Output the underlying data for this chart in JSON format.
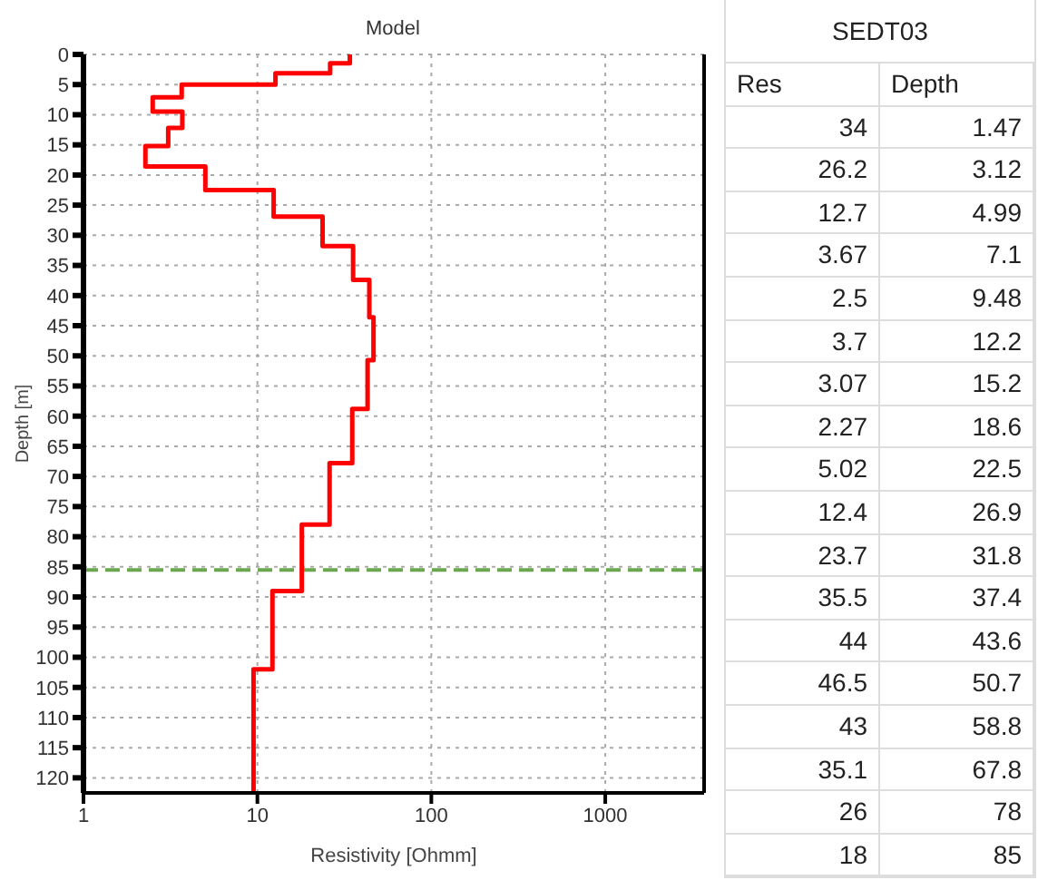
{
  "chart_data": [
    {
      "type": "line",
      "title": "Model",
      "xlabel": "Resistivity [Ohmm]",
      "ylabel": "Depth [m]",
      "log": "x",
      "xlim": [
        1,
        3700
      ],
      "xticks": [
        1,
        10,
        100,
        1000
      ],
      "ylim": [
        122.5,
        0
      ],
      "yticks": [
        0,
        5,
        10,
        15,
        20,
        25,
        30,
        35,
        40,
        45,
        50,
        55,
        60,
        65,
        70,
        75,
        80,
        85,
        90,
        95,
        100,
        105,
        110,
        115,
        120
      ],
      "grid": true,
      "marker": "none",
      "line_style": "solid",
      "series": [
        {
          "color": "#ff0000",
          "x": [
            34,
            34,
            26.2,
            26.2,
            12.7,
            12.7,
            3.67,
            3.67,
            2.5,
            2.5,
            3.7,
            3.7,
            3.07,
            3.07,
            2.27,
            2.27,
            5.02,
            5.02,
            12.4,
            12.4,
            23.7,
            23.7,
            35.5,
            35.5,
            44,
            44,
            46.5,
            46.5,
            43,
            43,
            35.1,
            35.1,
            26,
            26,
            18,
            18,
            12.2,
            12.2,
            9.5,
            9.5
          ],
          "values": [
            0,
            1.47,
            1.47,
            3.12,
            3.12,
            4.99,
            4.99,
            7.1,
            7.1,
            9.48,
            9.48,
            12.2,
            12.2,
            15.2,
            15.2,
            18.6,
            18.6,
            22.5,
            22.5,
            26.9,
            26.9,
            31.8,
            31.8,
            37.4,
            37.4,
            43.6,
            43.6,
            50.7,
            50.7,
            58.8,
            58.8,
            67.8,
            67.8,
            78,
            78,
            89,
            89,
            102,
            102,
            122.5
          ]
        }
      ],
      "ref_lines": [
        {
          "axis": "y",
          "value": 85.5,
          "color": "#6aa84f",
          "line_style": "dashed"
        }
      ]
    },
    {
      "type": "other",
      "title": "SEDT03",
      "categories": [
        "Res",
        "Depth"
      ],
      "annotations": [
        "34",
        "1.47",
        "26.2",
        "3.12",
        "12.7",
        "4.99",
        "3.67",
        "7.1",
        "2.5",
        "9.48",
        "3.7",
        "12.2",
        "3.07",
        "15.2",
        "2.27",
        "18.6",
        "5.02",
        "22.5",
        "12.4",
        "26.9",
        "23.7",
        "31.8",
        "35.5",
        "37.4",
        "44",
        "43.6",
        "46.5",
        "50.7",
        "43",
        "58.8",
        "35.1",
        "67.8",
        "26",
        "78",
        "18",
        "85"
      ]
    }
  ]
}
